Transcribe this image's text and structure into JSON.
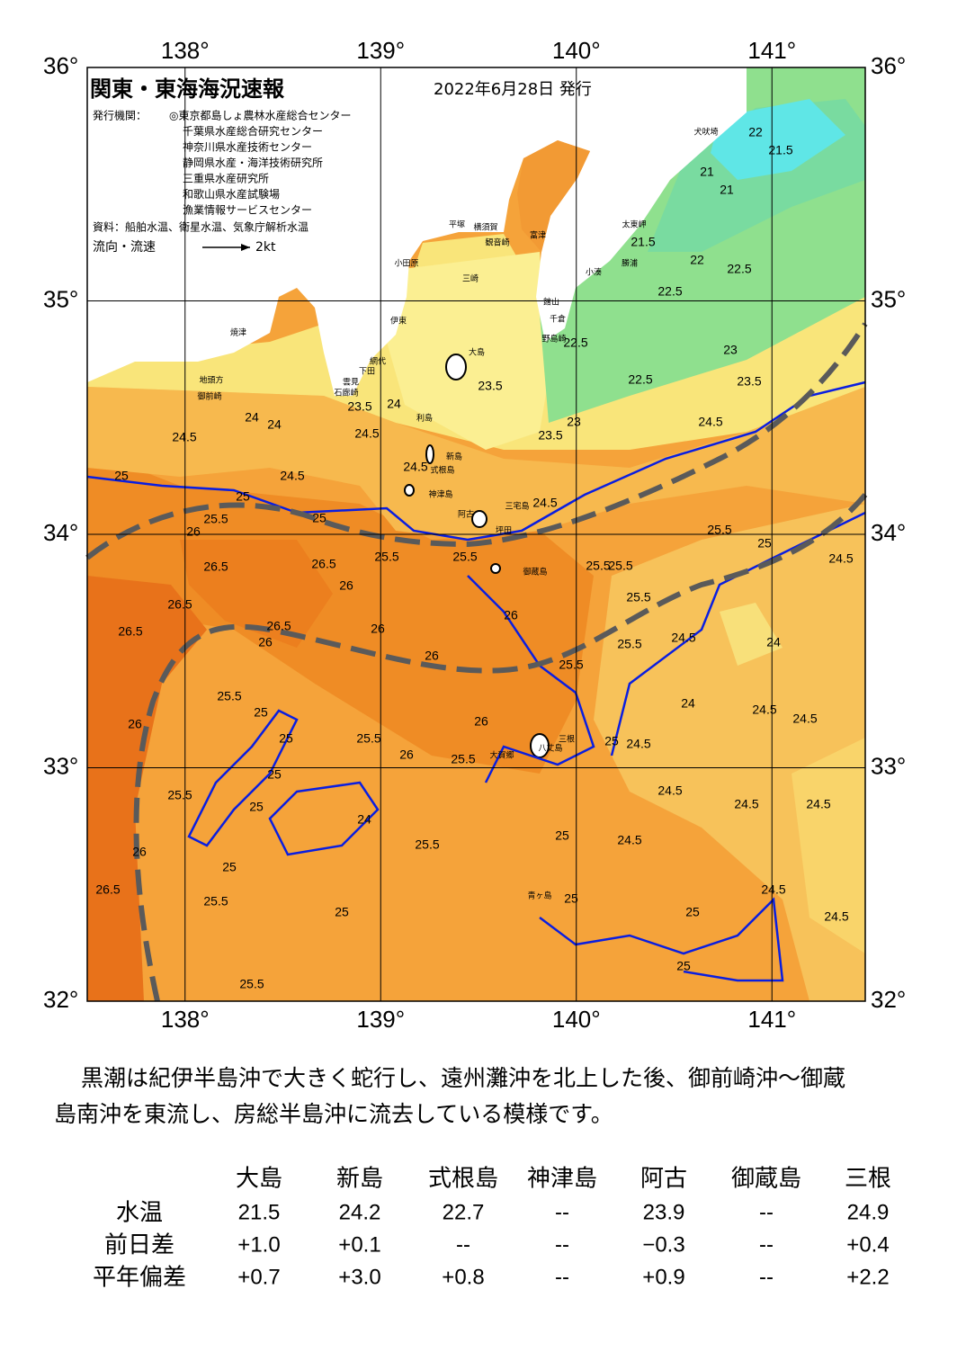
{
  "header": {
    "title": "関東・東海海況速報",
    "date": "2022年6月28日 発行",
    "publisher_label": "発行機関：",
    "publishers": [
      "◎東京都島しょ農林水産総合センター",
      "千葉県水産総合研究センター",
      "神奈川県水産技術センター",
      "静岡県水産・海洋技術研究所",
      "三重県水産研究所",
      "和歌山県水産試験場",
      "漁業情報サービスセンター"
    ],
    "source": "資料：船舶水温、衛星水温、気象庁解析水温",
    "flow_legend": "流向・流速",
    "flow_scale": "2kt"
  },
  "map": {
    "lon_ticks": [
      {
        "value": 138,
        "label": "138°"
      },
      {
        "value": 139,
        "label": "139°"
      },
      {
        "value": 140,
        "label": "140°"
      },
      {
        "value": 141,
        "label": "141°"
      }
    ],
    "lat_ticks": [
      {
        "value": 36,
        "label": "36°"
      },
      {
        "value": 35,
        "label": "35°"
      },
      {
        "value": 34,
        "label": "34°"
      },
      {
        "value": 33,
        "label": "33°"
      },
      {
        "value": 32,
        "label": "32°"
      }
    ],
    "places": [
      "犬吠埼",
      "太東岬",
      "勝浦",
      "小湊",
      "富津",
      "館山",
      "千倉",
      "野島崎",
      "観音崎",
      "横須賀",
      "三崎",
      "平塚",
      "小田原",
      "伊東",
      "網代",
      "下田",
      "雲見",
      "石廊崎",
      "焼津",
      "地頭方",
      "御前崎",
      "大島",
      "利島",
      "新島",
      "式根島",
      "神津島",
      "三宅島",
      "阿古",
      "坪田",
      "御蔵島",
      "八丈島",
      "三根",
      "大賀郷",
      "青ヶ島"
    ],
    "contour_labels": [
      22,
      21.5,
      21,
      21,
      21.5,
      22,
      22.5,
      22.5,
      22.5,
      23,
      22.5,
      23.5,
      23.5,
      24,
      23.5,
      23.5,
      23,
      24,
      24,
      24.5,
      24.5,
      24.5,
      24.5,
      24.5,
      24.5,
      25,
      25,
      25.5,
      26,
      25,
      25.5,
      25.5,
      25.5,
      25.5,
      25.5,
      25,
      24.5,
      26.5,
      26.5,
      26,
      26.5,
      26.5,
      26.5,
      26,
      26,
      26,
      26,
      25.5,
      25.5,
      25.5,
      24.5,
      24,
      25.5,
      25,
      26,
      25,
      25.5,
      26,
      26,
      25.5,
      25,
      24.5,
      24,
      24.5,
      24.5,
      25,
      25.5,
      25,
      24,
      24.5,
      24.5,
      24.5,
      25.5,
      25,
      24.5,
      25,
      26.5,
      26,
      25.5,
      25,
      25,
      25,
      24.5,
      24.5,
      25.5,
      25
    ]
  },
  "summary": [
    "黒潮は紀伊半島沖で大きく蛇行し、遠州灘沖を北上した後、御前崎沖～御蔵",
    "島南沖を東流し、房総半島沖に流去している模様です。"
  ],
  "table": {
    "columns": [
      "大島",
      "新島",
      "式根島",
      "神津島",
      "阿古",
      "御蔵島",
      "三根"
    ],
    "rows": [
      {
        "label": "水温",
        "values": [
          "21.5",
          "24.2",
          "22.7",
          "--",
          "23.9",
          "--",
          "24.9"
        ]
      },
      {
        "label": "前日差",
        "values": [
          "+1.0",
          "+0.1",
          "--",
          "--",
          "−0.3",
          "--",
          "+0.4"
        ]
      },
      {
        "label": "平年偏差",
        "values": [
          "+0.7",
          "+3.0",
          "+0.8",
          "--",
          "+0.9",
          "--",
          "+2.2"
        ]
      }
    ]
  }
}
